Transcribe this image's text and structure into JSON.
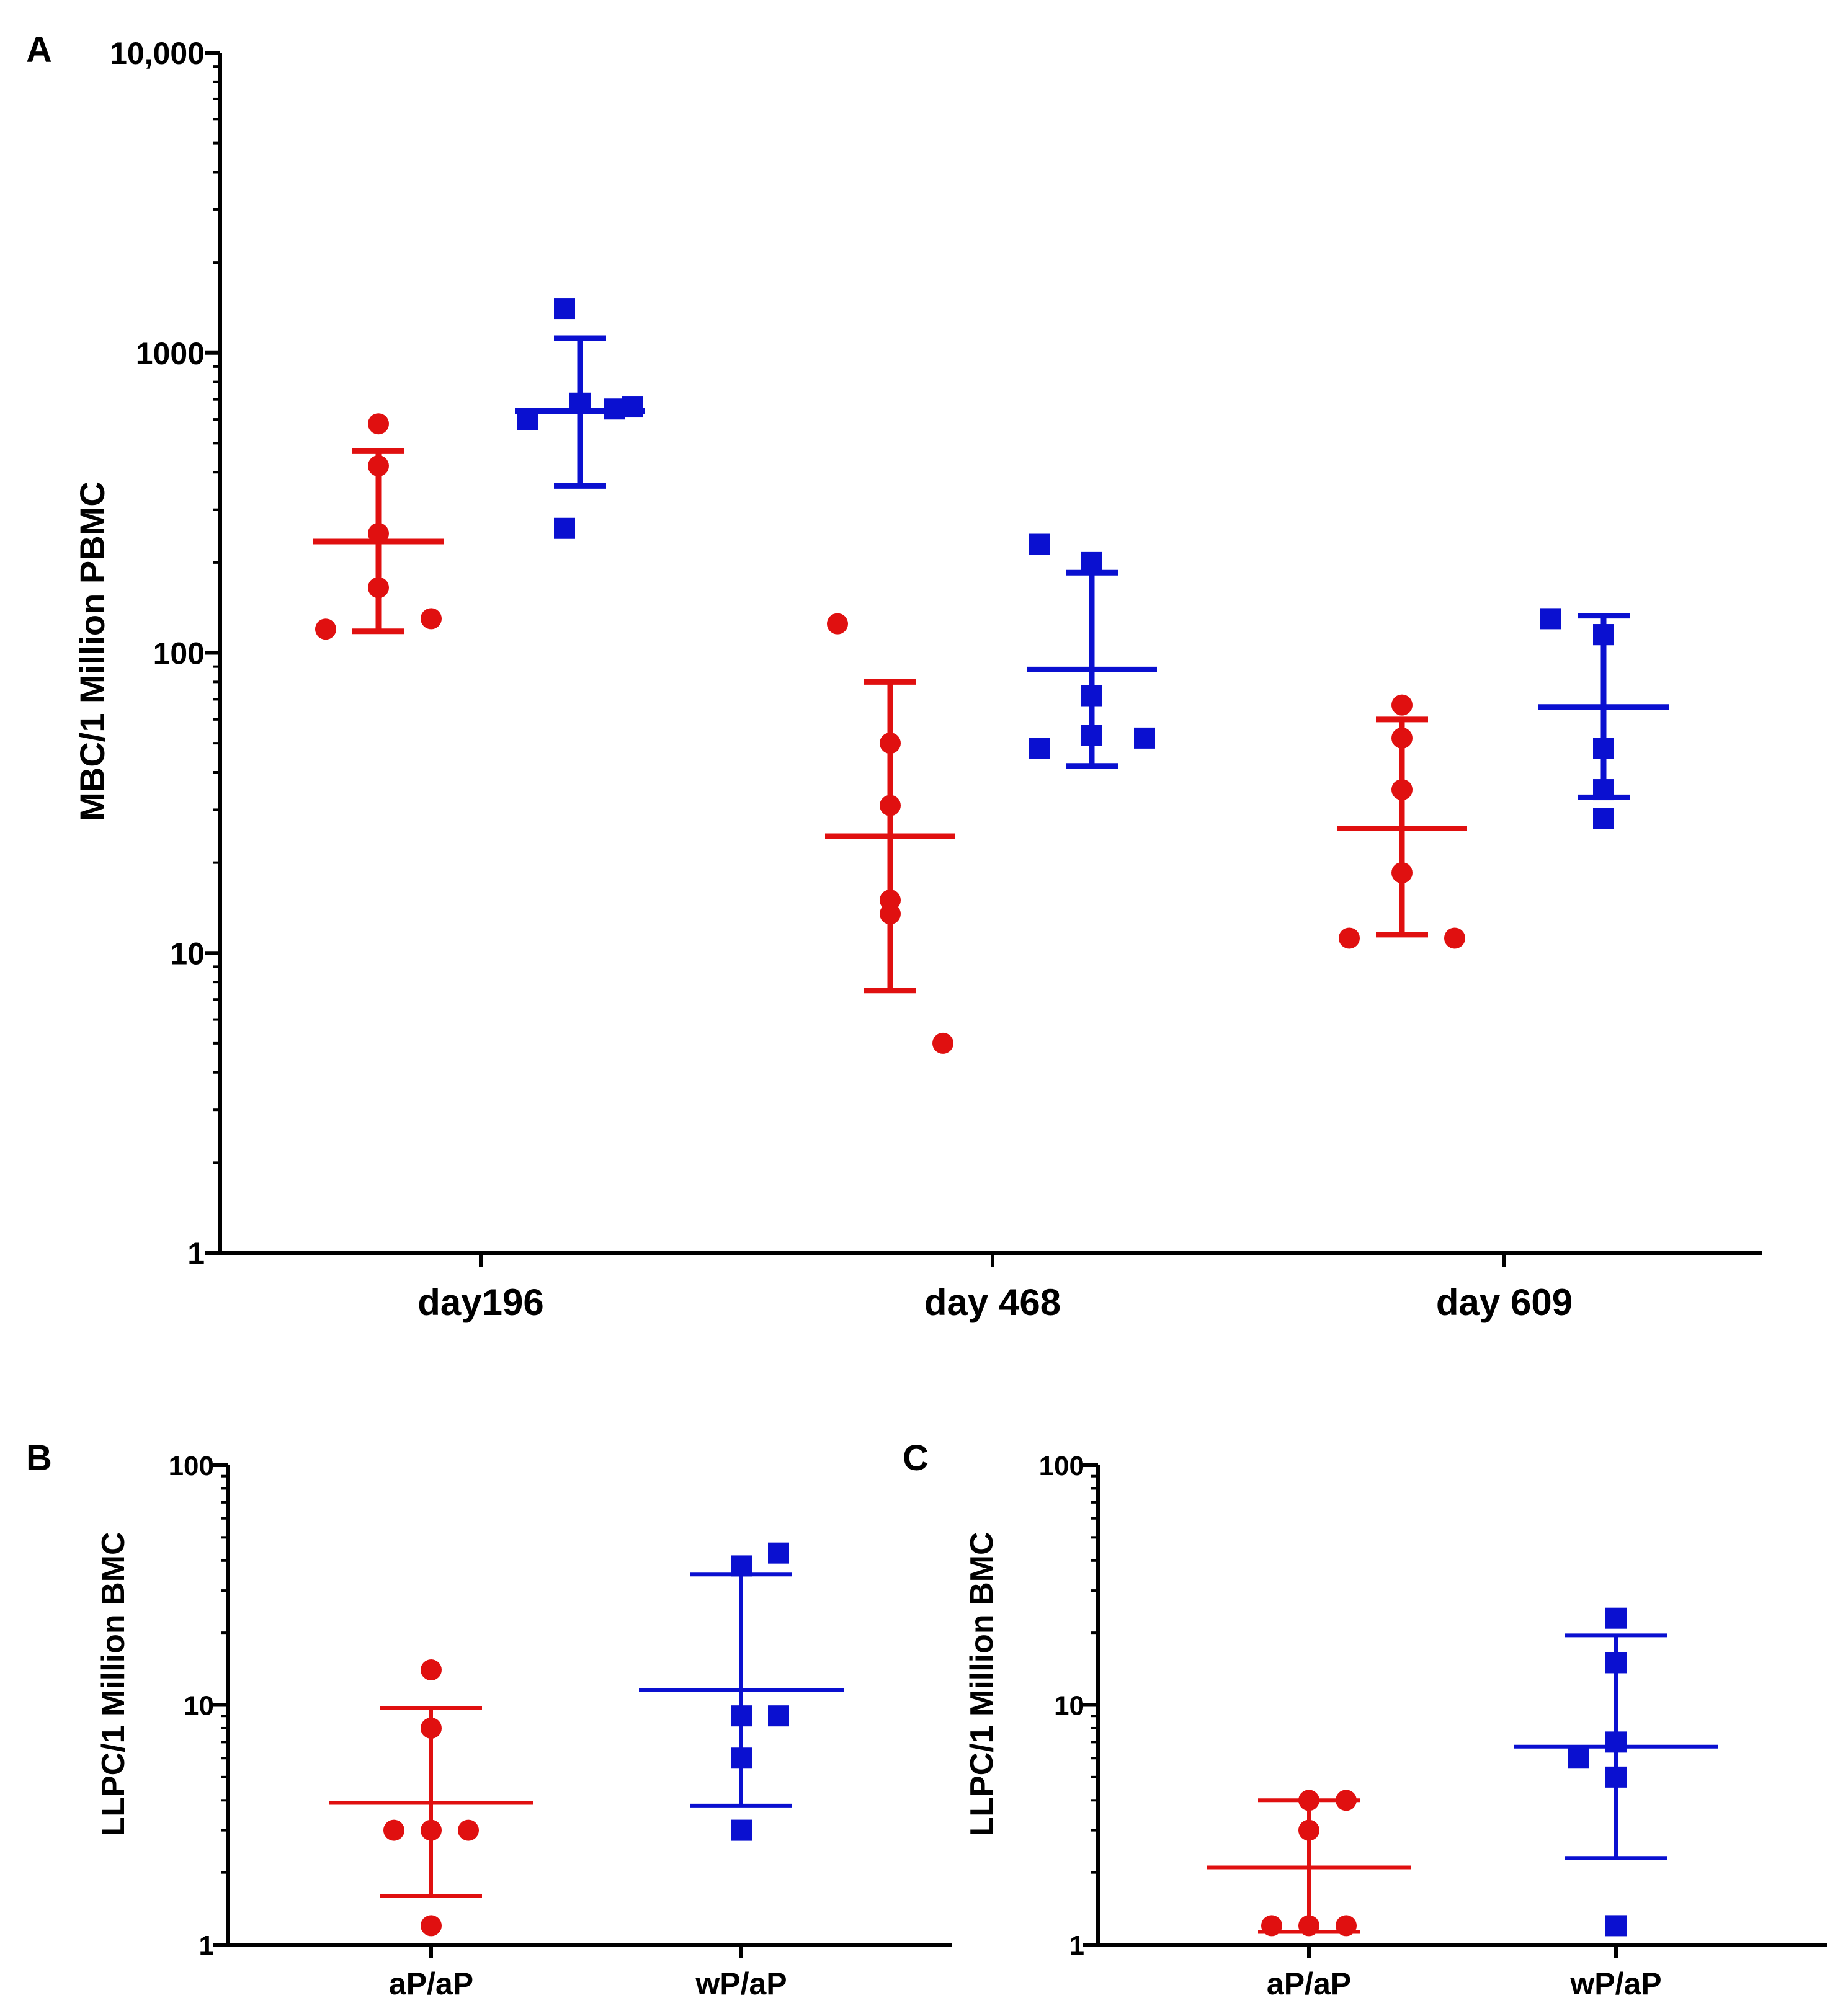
{
  "colors": {
    "aP_aP": "#e01010",
    "wP_aP": "#0a10d0",
    "axis": "#000000"
  },
  "chart_data": [
    {
      "panel": "A",
      "type": "scatter",
      "title": "",
      "xlabel": "",
      "ylabel": "MBC/1 Million PBMC",
      "yscale": "log",
      "ylim": [
        1,
        10000
      ],
      "yticks": [
        "1",
        "10",
        "100",
        "1000",
        "10,000"
      ],
      "categories": [
        "day196",
        "day 468",
        "day 609"
      ],
      "legend": "none",
      "series": [
        {
          "group": "aP/aP",
          "marker": "circle",
          "color": "#e01010",
          "points": [
            [
              120,
              580,
              420,
              250,
              165,
              130
            ],
            [
              125,
              50,
              31,
              15,
              13.5,
              5
            ],
            [
              67,
              52,
              35,
              18.5,
              11.2,
              11.2
            ]
          ],
          "mean": [
            235,
            24.5,
            26
          ],
          "err_low": [
            118,
            7.5,
            11.5
          ],
          "err_high": [
            470,
            80,
            60
          ]
        },
        {
          "group": "wP/aP",
          "marker": "square",
          "color": "#0a10d0",
          "points": [
            [
              1400,
              600,
              680,
              650,
              660,
              260
            ],
            [
              230,
              200,
              72,
              53,
              52,
              48
            ],
            [
              130,
              115,
              115,
              48,
              35,
              28
            ]
          ],
          "mean": [
            640,
            88,
            66
          ],
          "err_low": [
            360,
            42,
            33
          ],
          "err_high": [
            1120,
            185,
            133
          ]
        }
      ]
    },
    {
      "panel": "B",
      "type": "scatter",
      "title": "",
      "xlabel": "",
      "ylabel": "LLPC/1 Million BMC",
      "yscale": "log",
      "ylim": [
        1,
        100
      ],
      "yticks": [
        "1",
        "10",
        "100"
      ],
      "categories": [
        "aP/aP",
        "wP/aP"
      ],
      "legend": "none",
      "series": [
        {
          "group": "aP/aP",
          "marker": "circle",
          "color": "#e01010",
          "values": [
            14,
            8,
            3,
            3,
            3,
            1.2
          ],
          "mean": 3.9,
          "err_low": 1.6,
          "err_high": 9.7
        },
        {
          "group": "wP/aP",
          "marker": "square",
          "color": "#0a10d0",
          "values": [
            43,
            38,
            9,
            9,
            6,
            3
          ],
          "mean": 11.5,
          "err_low": 3.8,
          "err_high": 35
        }
      ]
    },
    {
      "panel": "C",
      "type": "scatter",
      "title": "",
      "xlabel": "",
      "ylabel": "LLPC/1 Million BMC",
      "yscale": "log",
      "ylim": [
        1,
        100
      ],
      "yticks": [
        "1",
        "10",
        "100"
      ],
      "categories": [
        "aP/aP",
        "wP/aP"
      ],
      "legend": "none",
      "series": [
        {
          "group": "aP/aP",
          "marker": "circle",
          "color": "#e01010",
          "values": [
            4,
            4,
            3,
            1.2,
            1.2,
            1.2
          ],
          "mean": 2.1,
          "err_low": 1.13,
          "err_high": 4
        },
        {
          "group": "wP/aP",
          "marker": "square",
          "color": "#0a10d0",
          "values": [
            23,
            15,
            7,
            6,
            5,
            1.2
          ],
          "mean": 6.7,
          "err_low": 2.3,
          "err_high": 19.5
        }
      ]
    }
  ]
}
